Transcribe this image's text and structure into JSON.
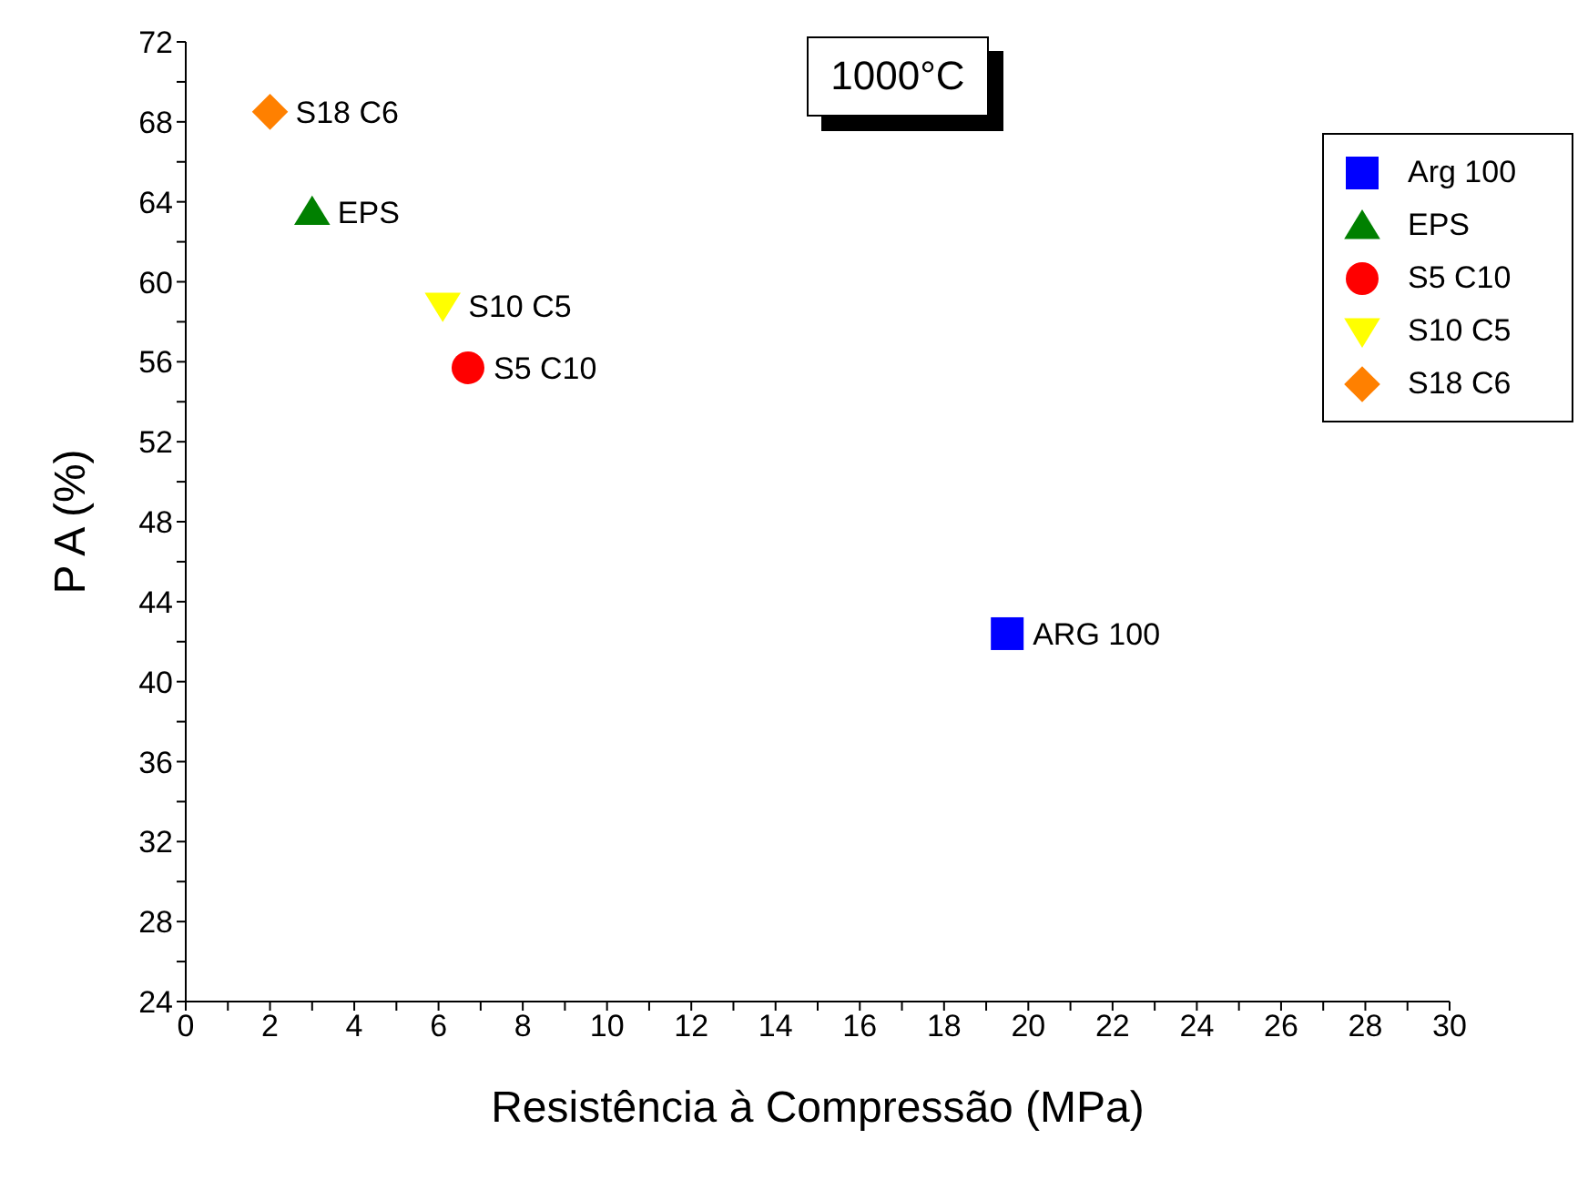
{
  "chart_data": {
    "type": "scatter",
    "title": "1000°C",
    "xlabel": "Resistência à Compressão (MPa)",
    "ylabel": "P A (%)",
    "xlim": [
      0,
      30
    ],
    "ylim": [
      24,
      72
    ],
    "xticks": [
      0,
      {
        "value": 1,
        "label": null
      },
      2,
      {
        "value": 3,
        "label": null
      },
      4,
      {
        "value": 5,
        "label": null
      },
      6,
      {
        "value": 7,
        "label": null
      },
      8,
      {
        "value": 9,
        "label": null
      },
      10,
      {
        "value": 11,
        "label": null
      },
      12,
      {
        "value": 13,
        "label": null
      },
      14,
      {
        "value": 15,
        "label": null
      },
      16,
      {
        "value": 17,
        "label": null
      },
      18,
      {
        "value": 19,
        "label": null
      },
      20,
      {
        "value": 21,
        "label": null
      },
      22,
      {
        "value": 23,
        "label": null
      },
      24,
      {
        "value": 25,
        "label": null
      },
      26,
      {
        "value": 27,
        "label": null
      },
      28,
      {
        "value": 29,
        "label": null
      },
      30
    ],
    "yticks": [
      24,
      {
        "value": 26,
        "label": null
      },
      28,
      {
        "value": 30,
        "label": null
      },
      32,
      {
        "value": 34,
        "label": null
      },
      36,
      {
        "value": 38,
        "label": null
      },
      40,
      {
        "value": 42,
        "label": null
      },
      44,
      {
        "value": 46,
        "label": null
      },
      48,
      {
        "value": 50,
        "label": null
      },
      52,
      {
        "value": 54,
        "label": null
      },
      56,
      {
        "value": 58,
        "label": null
      },
      60,
      {
        "value": 62,
        "label": null
      },
      64,
      {
        "value": 66,
        "label": null
      },
      68,
      {
        "value": 70,
        "label": null
      },
      72
    ],
    "grid": false,
    "legend": "top right",
    "series": [
      {
        "name": "Arg 100",
        "color": "#0000ff",
        "marker": "square",
        "x": [
          19.5
        ],
        "values": [
          42.4
        ]
      },
      {
        "name": "EPS",
        "color": "#008000",
        "marker": "triangle",
        "x": [
          3
        ],
        "values": [
          63.5
        ]
      },
      {
        "name": "S5 C10",
        "color": "#ff0000",
        "marker": "circle",
        "x": [
          6.7
        ],
        "values": [
          55.7
        ]
      },
      {
        "name": "S10 C5",
        "color": "#ffff00",
        "marker": "triangle-down",
        "x": [
          6.1
        ],
        "values": [
          58.8
        ]
      },
      {
        "name": "S18 C6",
        "color": "#ff8000",
        "marker": "diamond",
        "x": [
          2
        ],
        "values": [
          68.5
        ]
      }
    ],
    "annotations": [
      {
        "text": "ARG 100",
        "x": 19.5,
        "y": 42.4
      },
      {
        "text": "EPS",
        "x": 3,
        "y": 63.5
      },
      {
        "text": "S5 C10",
        "x": 6.7,
        "y": 55.7
      },
      {
        "text": "S10 C5",
        "x": 6.1,
        "y": 58.8
      },
      {
        "text": "S18 C6",
        "x": 2,
        "y": 68.5
      }
    ]
  }
}
